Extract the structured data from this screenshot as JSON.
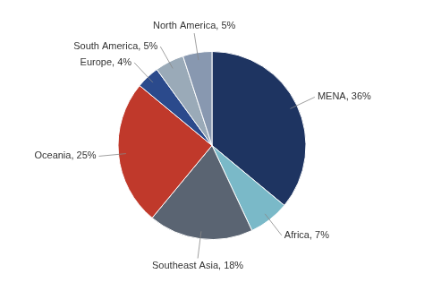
{
  "chart_data": {
    "type": "pie",
    "categories": [
      "MENA",
      "Africa",
      "Southeast Asia",
      "Oceania",
      "Europe",
      "South America",
      "North America"
    ],
    "values": [
      36,
      7,
      18,
      25,
      4,
      5,
      5
    ],
    "colors": [
      "#1e3461",
      "#7ab9c8",
      "#5a6472",
      "#c0392b",
      "#2b4a8c",
      "#9aaab8",
      "#8898b0"
    ],
    "value_labels": [
      "MENA, 36%",
      "Africa, 7%",
      "Southeast Asia, 18%",
      "Oceania, 25%",
      "Europe, 4%",
      "South America, 5%",
      "North America, 5%"
    ],
    "data_labels": true
  }
}
